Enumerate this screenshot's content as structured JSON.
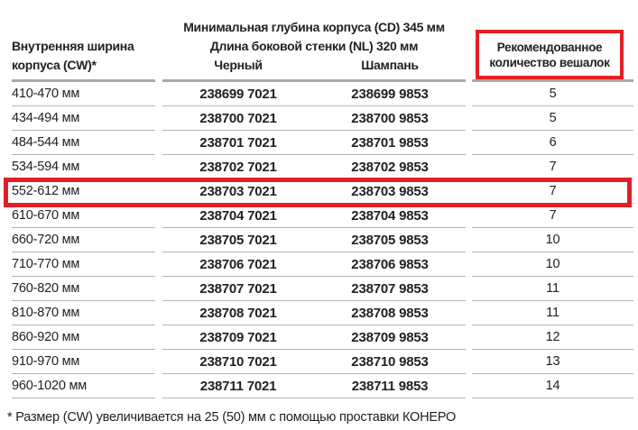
{
  "colors": {
    "highlight_red": "#e21f26",
    "text": "#232122",
    "header_rule_gray": "#a6a8ab",
    "row_rule_gray": "#b3b5b7"
  },
  "table": {
    "col1_header_line1": "Внутренняя ширина",
    "col1_header_line2": "корпуса (CW)*",
    "group_header_line1": "Минимальная глубина корпуса (CD) 345 мм",
    "group_header_line2": "Длина боковой стенки (NL) 320 мм",
    "col_black_label": "Черный",
    "col_champagne_label": "Шампань",
    "col_hangers_line1": "Рекомендованное",
    "col_hangers_line2": "количество вешалок",
    "rows": [
      {
        "width": "410-470 мм",
        "black": "238699 7021",
        "champagne": "238699 9853",
        "hangers": "5",
        "highlighted": false
      },
      {
        "width": "434-494 мм",
        "black": "238700 7021",
        "champagne": "238700 9853",
        "hangers": "5",
        "highlighted": false
      },
      {
        "width": "484-544 мм",
        "black": "238701 7021",
        "champagne": "238701 9853",
        "hangers": "6",
        "highlighted": false
      },
      {
        "width": "534-594 мм",
        "black": "238702 7021",
        "champagne": "238702 9853",
        "hangers": "7",
        "highlighted": false
      },
      {
        "width": "552-612 мм",
        "black": "238703 7021",
        "champagne": "238703 9853",
        "hangers": "7",
        "highlighted": true
      },
      {
        "width": "610-670 мм",
        "black": "238704 7021",
        "champagne": "238704 9853",
        "hangers": "7",
        "highlighted": false
      },
      {
        "width": "660-720 мм",
        "black": "238705 7021",
        "champagne": "238705 9853",
        "hangers": "10",
        "highlighted": false
      },
      {
        "width": "710-770 мм",
        "black": "238706 7021",
        "champagne": "238706 9853",
        "hangers": "10",
        "highlighted": false
      },
      {
        "width": "760-820 мм",
        "black": "238707 7021",
        "champagne": "238707 9853",
        "hangers": "11",
        "highlighted": false
      },
      {
        "width": "810-870 мм",
        "black": "238708 7021",
        "champagne": "238708 9853",
        "hangers": "11",
        "highlighted": false
      },
      {
        "width": "860-920 мм",
        "black": "238709 7021",
        "champagne": "238709 9853",
        "hangers": "12",
        "highlighted": false
      },
      {
        "width": "910-970 мм",
        "black": "238710 7021",
        "champagne": "238710 9853",
        "hangers": "13",
        "highlighted": false
      },
      {
        "width": "960-1020 мм",
        "black": "238711 7021",
        "champagne": "238711 9853",
        "hangers": "14",
        "highlighted": false
      }
    ]
  },
  "footnote": "* Размер (CW) увеличивается на 25 (50) мм с помощью проставки КОНЕРО"
}
